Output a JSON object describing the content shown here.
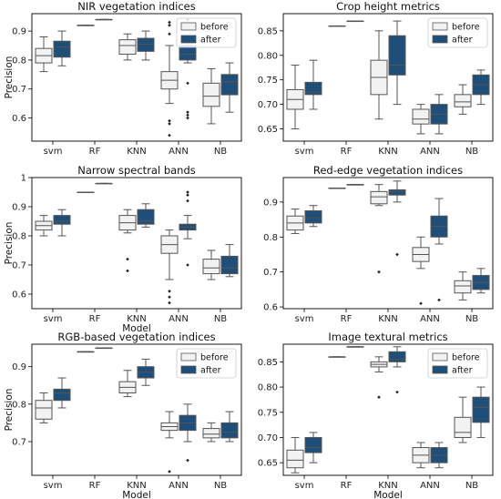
{
  "colors": {
    "before": "#f2f2f2",
    "after": "#1f4e79",
    "line": "#555555"
  },
  "legend": {
    "before": "before",
    "after": "after"
  },
  "chart_data": [
    {
      "type": "box",
      "title": "NIR vegetation indices",
      "ylabel": "Precision",
      "xlabel": "",
      "categories": [
        "svm",
        "RF",
        "KNN",
        "ANN",
        "NB"
      ],
      "ylim": [
        0.52,
        0.96
      ],
      "yticks": [
        0.6,
        0.7,
        0.8,
        0.9
      ],
      "legend_position": "top-right",
      "series": [
        {
          "name": "before",
          "boxes": [
            {
              "wlo": 0.76,
              "q1": 0.79,
              "med": 0.815,
              "q3": 0.84,
              "whi": 0.88,
              "out": []
            },
            {
              "wlo": 0.92,
              "q1": 0.92,
              "med": 0.92,
              "q3": 0.92,
              "whi": 0.92,
              "out": []
            },
            {
              "wlo": 0.8,
              "q1": 0.82,
              "med": 0.85,
              "q3": 0.87,
              "whi": 0.89,
              "out": []
            },
            {
              "wlo": 0.65,
              "q1": 0.7,
              "med": 0.73,
              "q3": 0.76,
              "whi": 0.85,
              "out": [
                0.93,
                0.92,
                0.89,
                0.59,
                0.58,
                0.54
              ]
            },
            {
              "wlo": 0.58,
              "q1": 0.64,
              "med": 0.675,
              "q3": 0.72,
              "whi": 0.77,
              "out": []
            }
          ]
        },
        {
          "name": "after",
          "boxes": [
            {
              "wlo": 0.78,
              "q1": 0.81,
              "med": 0.845,
              "q3": 0.865,
              "whi": 0.9,
              "out": []
            },
            {
              "wlo": 0.94,
              "q1": 0.94,
              "med": 0.94,
              "q3": 0.94,
              "whi": 0.94,
              "out": []
            },
            {
              "wlo": 0.8,
              "q1": 0.83,
              "med": 0.855,
              "q3": 0.875,
              "whi": 0.9,
              "out": []
            },
            {
              "wlo": 0.79,
              "q1": 0.8,
              "med": 0.82,
              "q3": 0.85,
              "whi": 0.88,
              "out": [
                0.94,
                0.72,
                0.62,
                0.61,
                0.6
              ]
            },
            {
              "wlo": 0.62,
              "q1": 0.68,
              "med": 0.725,
              "q3": 0.75,
              "whi": 0.79,
              "out": []
            }
          ]
        }
      ]
    },
    {
      "type": "box",
      "title": "Crop height metrics",
      "ylabel": "",
      "xlabel": "",
      "categories": [
        "svm",
        "RF",
        "KNN",
        "ANN",
        "NB"
      ],
      "ylim": [
        0.625,
        0.885
      ],
      "yticks": [
        0.65,
        0.7,
        0.75,
        0.8,
        0.85
      ],
      "yticklabels": [
        "0.65",
        "0.70",
        "0.75",
        "0.80",
        "0.85"
      ],
      "legend_position": "top-right",
      "series": [
        {
          "name": "before",
          "boxes": [
            {
              "wlo": 0.65,
              "q1": 0.69,
              "med": 0.71,
              "q3": 0.73,
              "whi": 0.78,
              "out": []
            },
            {
              "wlo": 0.86,
              "q1": 0.86,
              "med": 0.86,
              "q3": 0.86,
              "whi": 0.86,
              "out": []
            },
            {
              "wlo": 0.67,
              "q1": 0.72,
              "med": 0.755,
              "q3": 0.79,
              "whi": 0.85,
              "out": []
            },
            {
              "wlo": 0.64,
              "q1": 0.66,
              "med": 0.67,
              "q3": 0.69,
              "whi": 0.7,
              "out": []
            },
            {
              "wlo": 0.68,
              "q1": 0.695,
              "med": 0.705,
              "q3": 0.72,
              "whi": 0.74,
              "out": []
            }
          ]
        },
        {
          "name": "after",
          "boxes": [
            {
              "wlo": 0.69,
              "q1": 0.72,
              "med": 0.725,
              "q3": 0.745,
              "whi": 0.79,
              "out": []
            },
            {
              "wlo": 0.87,
              "q1": 0.87,
              "med": 0.87,
              "q3": 0.87,
              "whi": 0.87,
              "out": []
            },
            {
              "wlo": 0.7,
              "q1": 0.76,
              "med": 0.78,
              "q3": 0.84,
              "whi": 0.87,
              "out": []
            },
            {
              "wlo": 0.64,
              "q1": 0.66,
              "med": 0.68,
              "q3": 0.7,
              "whi": 0.72,
              "out": []
            },
            {
              "wlo": 0.7,
              "q1": 0.72,
              "med": 0.74,
              "q3": 0.76,
              "whi": 0.77,
              "out": []
            }
          ]
        }
      ]
    },
    {
      "type": "box",
      "title": "Narrow spectral bands",
      "ylabel": "Precision",
      "xlabel": "Model",
      "categories": [
        "svm",
        "RF",
        "KNN",
        "ANN",
        "NB"
      ],
      "ylim": [
        0.55,
        1.0
      ],
      "yticks": [
        0.6,
        0.7,
        0.8,
        0.9,
        1.0
      ],
      "legend_position": "none",
      "series": [
        {
          "name": "before",
          "boxes": [
            {
              "wlo": 0.8,
              "q1": 0.82,
              "med": 0.835,
              "q3": 0.85,
              "whi": 0.87,
              "out": []
            },
            {
              "wlo": 0.95,
              "q1": 0.95,
              "med": 0.95,
              "q3": 0.95,
              "whi": 0.95,
              "out": []
            },
            {
              "wlo": 0.81,
              "q1": 0.82,
              "med": 0.845,
              "q3": 0.87,
              "whi": 0.89,
              "out": [
                0.72,
                0.68
              ]
            },
            {
              "wlo": 0.65,
              "q1": 0.74,
              "med": 0.77,
              "q3": 0.8,
              "whi": 0.82,
              "out": [
                0.61,
                0.59,
                0.57
              ]
            },
            {
              "wlo": 0.65,
              "q1": 0.67,
              "med": 0.69,
              "q3": 0.72,
              "whi": 0.75,
              "out": []
            }
          ]
        },
        {
          "name": "after",
          "boxes": [
            {
              "wlo": 0.8,
              "q1": 0.84,
              "med": 0.85,
              "q3": 0.87,
              "whi": 0.89,
              "out": []
            },
            {
              "wlo": 0.98,
              "q1": 0.98,
              "med": 0.98,
              "q3": 0.98,
              "whi": 0.98,
              "out": []
            },
            {
              "wlo": 0.83,
              "q1": 0.84,
              "med": 0.85,
              "q3": 0.89,
              "whi": 0.91,
              "out": []
            },
            {
              "wlo": 0.79,
              "q1": 0.82,
              "med": 0.83,
              "q3": 0.84,
              "whi": 0.87,
              "out": [
                0.95,
                0.94,
                0.92,
                0.7
              ]
            },
            {
              "wlo": 0.66,
              "q1": 0.67,
              "med": 0.69,
              "q3": 0.73,
              "whi": 0.77,
              "out": []
            }
          ]
        }
      ]
    },
    {
      "type": "box",
      "title": "Red-edge vegetation indices",
      "ylabel": "",
      "xlabel": "",
      "categories": [
        "svm",
        "RF",
        "KNN",
        "ANN",
        "NB"
      ],
      "ylim": [
        0.595,
        0.97
      ],
      "yticks": [
        0.6,
        0.7,
        0.8,
        0.9
      ],
      "legend_position": "none",
      "series": [
        {
          "name": "before",
          "boxes": [
            {
              "wlo": 0.81,
              "q1": 0.82,
              "med": 0.84,
              "q3": 0.86,
              "whi": 0.88,
              "out": []
            },
            {
              "wlo": 0.94,
              "q1": 0.94,
              "med": 0.94,
              "q3": 0.94,
              "whi": 0.94,
              "out": []
            },
            {
              "wlo": 0.89,
              "q1": 0.895,
              "med": 0.915,
              "q3": 0.93,
              "whi": 0.95,
              "out": [
                0.7
              ]
            },
            {
              "wlo": 0.71,
              "q1": 0.73,
              "med": 0.75,
              "q3": 0.77,
              "whi": 0.8,
              "out": [
                0.61
              ]
            },
            {
              "wlo": 0.62,
              "q1": 0.64,
              "med": 0.66,
              "q3": 0.675,
              "whi": 0.7,
              "out": []
            }
          ]
        },
        {
          "name": "after",
          "boxes": [
            {
              "wlo": 0.83,
              "q1": 0.84,
              "med": 0.855,
              "q3": 0.875,
              "whi": 0.89,
              "out": []
            },
            {
              "wlo": 0.95,
              "q1": 0.95,
              "med": 0.95,
              "q3": 0.95,
              "whi": 0.95,
              "out": []
            },
            {
              "wlo": 0.9,
              "q1": 0.92,
              "med": 0.93,
              "q3": 0.935,
              "whi": 0.96,
              "out": [
                0.75
              ]
            },
            {
              "wlo": 0.78,
              "q1": 0.8,
              "med": 0.83,
              "q3": 0.86,
              "whi": 0.91,
              "out": [
                0.62
              ]
            },
            {
              "wlo": 0.64,
              "q1": 0.65,
              "med": 0.67,
              "q3": 0.69,
              "whi": 0.71,
              "out": []
            }
          ]
        }
      ]
    },
    {
      "type": "box",
      "title": "RGB-based vegetation indices",
      "ylabel": "Precision",
      "xlabel": "Model",
      "categories": [
        "svm",
        "RF",
        "KNN",
        "ANN",
        "NB"
      ],
      "ylim": [
        0.61,
        0.96
      ],
      "yticks": [
        0.7,
        0.8,
        0.9
      ],
      "legend_position": "top-right",
      "series": [
        {
          "name": "before",
          "boxes": [
            {
              "wlo": 0.75,
              "q1": 0.76,
              "med": 0.79,
              "q3": 0.81,
              "whi": 0.83,
              "out": []
            },
            {
              "wlo": 0.94,
              "q1": 0.94,
              "med": 0.94,
              "q3": 0.94,
              "whi": 0.94,
              "out": []
            },
            {
              "wlo": 0.82,
              "q1": 0.83,
              "med": 0.845,
              "q3": 0.86,
              "whi": 0.89,
              "out": []
            },
            {
              "wlo": 0.71,
              "q1": 0.73,
              "med": 0.74,
              "q3": 0.75,
              "whi": 0.78,
              "out": [
                0.62
              ]
            },
            {
              "wlo": 0.7,
              "q1": 0.71,
              "med": 0.72,
              "q3": 0.735,
              "whi": 0.75,
              "out": []
            }
          ]
        },
        {
          "name": "after",
          "boxes": [
            {
              "wlo": 0.79,
              "q1": 0.81,
              "med": 0.83,
              "q3": 0.84,
              "whi": 0.87,
              "out": []
            },
            {
              "wlo": 0.95,
              "q1": 0.95,
              "med": 0.95,
              "q3": 0.95,
              "whi": 0.95,
              "out": []
            },
            {
              "wlo": 0.85,
              "q1": 0.87,
              "med": 0.885,
              "q3": 0.9,
              "whi": 0.92,
              "out": []
            },
            {
              "wlo": 0.7,
              "q1": 0.73,
              "med": 0.75,
              "q3": 0.77,
              "whi": 0.8,
              "out": [
                0.65
              ]
            },
            {
              "wlo": 0.7,
              "q1": 0.71,
              "med": 0.725,
              "q3": 0.75,
              "whi": 0.78,
              "out": []
            }
          ]
        }
      ]
    },
    {
      "type": "box",
      "title": "Image textural metrics",
      "ylabel": "",
      "xlabel": "Model",
      "categories": [
        "svm",
        "RF",
        "KNN",
        "ANN",
        "NB"
      ],
      "ylim": [
        0.625,
        0.885
      ],
      "yticks": [
        0.65,
        0.7,
        0.75,
        0.8,
        0.85
      ],
      "yticklabels": [
        "0.65",
        "0.70",
        "0.75",
        "0.80",
        "0.85"
      ],
      "legend_position": "top-right",
      "series": [
        {
          "name": "before",
          "boxes": [
            {
              "wlo": 0.63,
              "q1": 0.64,
              "med": 0.655,
              "q3": 0.675,
              "whi": 0.7,
              "out": []
            },
            {
              "wlo": 0.86,
              "q1": 0.86,
              "med": 0.86,
              "q3": 0.86,
              "whi": 0.86,
              "out": []
            },
            {
              "wlo": 0.83,
              "q1": 0.84,
              "med": 0.845,
              "q3": 0.85,
              "whi": 0.86,
              "out": [
                0.78
              ]
            },
            {
              "wlo": 0.64,
              "q1": 0.65,
              "med": 0.665,
              "q3": 0.68,
              "whi": 0.69,
              "out": []
            },
            {
              "wlo": 0.69,
              "q1": 0.7,
              "med": 0.71,
              "q3": 0.74,
              "whi": 0.78,
              "out": []
            }
          ]
        },
        {
          "name": "after",
          "boxes": [
            {
              "wlo": 0.65,
              "q1": 0.67,
              "med": 0.68,
              "q3": 0.7,
              "whi": 0.71,
              "out": []
            },
            {
              "wlo": 0.88,
              "q1": 0.88,
              "med": 0.88,
              "q3": 0.88,
              "whi": 0.88,
              "out": []
            },
            {
              "wlo": 0.84,
              "q1": 0.85,
              "med": 0.855,
              "q3": 0.87,
              "whi": 0.88,
              "out": [
                0.79
              ]
            },
            {
              "wlo": 0.64,
              "q1": 0.65,
              "med": 0.665,
              "q3": 0.68,
              "whi": 0.69,
              "out": []
            },
            {
              "wlo": 0.7,
              "q1": 0.73,
              "med": 0.76,
              "q3": 0.78,
              "whi": 0.8,
              "out": []
            }
          ]
        }
      ]
    }
  ]
}
